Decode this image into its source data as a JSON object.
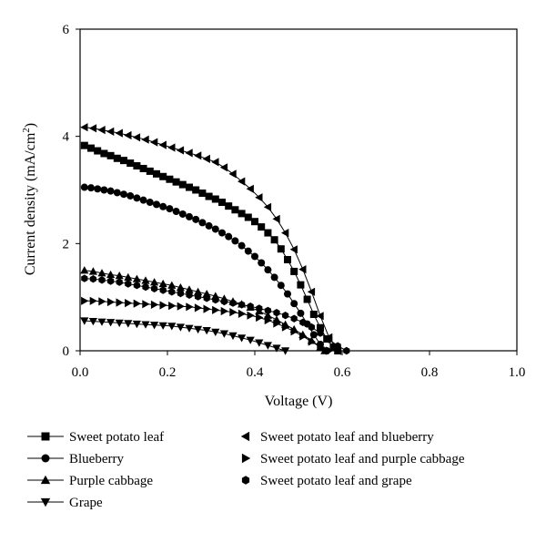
{
  "chart_data": {
    "type": "line",
    "title": "",
    "xlabel": "Voltage (V)",
    "ylabel": "Current density (mA/cm",
    "ylabel_sup": "2",
    "ylabel_close": ")",
    "xlim": [
      0,
      1.0
    ],
    "ylim": [
      0,
      6
    ],
    "xticks": [
      0,
      0.2,
      0.4,
      0.6,
      0.8,
      1.0
    ],
    "xtick_labels": [
      "0.0",
      "0.2",
      "0.4",
      "0.6",
      "0.8",
      "1.0"
    ],
    "yticks": [
      0,
      2,
      4,
      6
    ],
    "ytick_labels": [
      "0",
      "2",
      "4",
      "6"
    ],
    "grid": false,
    "legend_position": "bottom",
    "series": [
      {
        "name": "Sweet potato leaf",
        "marker": "square",
        "x": [
          0.01,
          0.025,
          0.04,
          0.055,
          0.07,
          0.085,
          0.1,
          0.115,
          0.13,
          0.145,
          0.16,
          0.175,
          0.19,
          0.205,
          0.22,
          0.235,
          0.25,
          0.265,
          0.28,
          0.295,
          0.31,
          0.325,
          0.34,
          0.355,
          0.37,
          0.385,
          0.4,
          0.415,
          0.43,
          0.445,
          0.46,
          0.475,
          0.49,
          0.505,
          0.52,
          0.535,
          0.55,
          0.565,
          0.58,
          0.59
        ],
        "y": [
          3.83,
          3.78,
          3.73,
          3.68,
          3.64,
          3.59,
          3.55,
          3.5,
          3.45,
          3.4,
          3.35,
          3.3,
          3.25,
          3.2,
          3.15,
          3.1,
          3.05,
          3.0,
          2.94,
          2.88,
          2.83,
          2.77,
          2.7,
          2.63,
          2.56,
          2.49,
          2.41,
          2.31,
          2.2,
          2.07,
          1.9,
          1.7,
          1.48,
          1.23,
          0.96,
          0.68,
          0.43,
          0.22,
          0.07,
          0.0
        ]
      },
      {
        "name": "Blueberry",
        "marker": "circle",
        "x": [
          0.01,
          0.025,
          0.04,
          0.055,
          0.07,
          0.085,
          0.1,
          0.115,
          0.13,
          0.145,
          0.16,
          0.175,
          0.19,
          0.205,
          0.22,
          0.235,
          0.25,
          0.265,
          0.28,
          0.295,
          0.31,
          0.325,
          0.34,
          0.355,
          0.37,
          0.385,
          0.4,
          0.415,
          0.43,
          0.445,
          0.46,
          0.475,
          0.49,
          0.505,
          0.52,
          0.535,
          0.55,
          0.565
        ],
        "y": [
          3.05,
          3.04,
          3.02,
          3.0,
          2.98,
          2.95,
          2.92,
          2.89,
          2.85,
          2.81,
          2.77,
          2.73,
          2.69,
          2.65,
          2.6,
          2.55,
          2.5,
          2.45,
          2.39,
          2.33,
          2.27,
          2.2,
          2.13,
          2.05,
          1.96,
          1.86,
          1.76,
          1.64,
          1.51,
          1.37,
          1.22,
          1.06,
          0.88,
          0.7,
          0.5,
          0.3,
          0.12,
          0.0
        ]
      },
      {
        "name": "Purple cabbage",
        "marker": "triangle-up",
        "x": [
          0.01,
          0.03,
          0.05,
          0.07,
          0.09,
          0.11,
          0.13,
          0.15,
          0.17,
          0.19,
          0.21,
          0.23,
          0.25,
          0.27,
          0.29,
          0.31,
          0.33,
          0.35,
          0.37,
          0.39,
          0.41,
          0.43,
          0.45,
          0.47,
          0.49,
          0.51,
          0.53,
          0.55,
          0.56
        ],
        "y": [
          1.5,
          1.48,
          1.45,
          1.42,
          1.4,
          1.37,
          1.34,
          1.31,
          1.28,
          1.25,
          1.22,
          1.18,
          1.14,
          1.1,
          1.06,
          1.02,
          0.97,
          0.92,
          0.87,
          0.81,
          0.74,
          0.66,
          0.58,
          0.49,
          0.4,
          0.3,
          0.19,
          0.07,
          0.0
        ]
      },
      {
        "name": "Grape",
        "marker": "triangle-down",
        "x": [
          0.01,
          0.03,
          0.05,
          0.07,
          0.09,
          0.11,
          0.13,
          0.15,
          0.17,
          0.19,
          0.21,
          0.23,
          0.25,
          0.27,
          0.29,
          0.31,
          0.33,
          0.35,
          0.37,
          0.39,
          0.41,
          0.43,
          0.45,
          0.47
        ],
        "y": [
          0.56,
          0.55,
          0.54,
          0.53,
          0.52,
          0.51,
          0.5,
          0.49,
          0.48,
          0.47,
          0.46,
          0.44,
          0.42,
          0.4,
          0.38,
          0.35,
          0.32,
          0.28,
          0.24,
          0.2,
          0.15,
          0.1,
          0.05,
          0.0
        ]
      },
      {
        "name": "Sweet potato leaf and blueberry",
        "marker": "triangle-left",
        "x": [
          0.01,
          0.03,
          0.05,
          0.07,
          0.09,
          0.11,
          0.13,
          0.15,
          0.17,
          0.19,
          0.21,
          0.23,
          0.25,
          0.27,
          0.29,
          0.31,
          0.33,
          0.35,
          0.37,
          0.39,
          0.41,
          0.43,
          0.45,
          0.47,
          0.49,
          0.51,
          0.53,
          0.55,
          0.57,
          0.59
        ],
        "y": [
          4.17,
          4.15,
          4.12,
          4.09,
          4.06,
          4.02,
          3.98,
          3.94,
          3.89,
          3.84,
          3.79,
          3.74,
          3.69,
          3.64,
          3.58,
          3.52,
          3.42,
          3.3,
          3.16,
          3.02,
          2.86,
          2.68,
          2.46,
          2.2,
          1.89,
          1.52,
          1.1,
          0.65,
          0.25,
          0.0
        ]
      },
      {
        "name": "Sweet potato leaf and purple cabbage",
        "marker": "triangle-right",
        "x": [
          0.01,
          0.03,
          0.05,
          0.07,
          0.09,
          0.11,
          0.13,
          0.15,
          0.17,
          0.19,
          0.21,
          0.23,
          0.25,
          0.27,
          0.29,
          0.31,
          0.33,
          0.35,
          0.37,
          0.39,
          0.41,
          0.43,
          0.45,
          0.47,
          0.49,
          0.51,
          0.53,
          0.55,
          0.57
        ],
        "y": [
          0.93,
          0.93,
          0.92,
          0.91,
          0.9,
          0.89,
          0.88,
          0.87,
          0.86,
          0.85,
          0.84,
          0.83,
          0.82,
          0.8,
          0.78,
          0.76,
          0.74,
          0.72,
          0.69,
          0.66,
          0.62,
          0.57,
          0.51,
          0.44,
          0.36,
          0.27,
          0.17,
          0.07,
          0.0
        ]
      },
      {
        "name": "Sweet potato leaf and grape",
        "marker": "hexagon",
        "x": [
          0.01,
          0.03,
          0.05,
          0.07,
          0.09,
          0.11,
          0.13,
          0.15,
          0.17,
          0.19,
          0.21,
          0.23,
          0.25,
          0.27,
          0.29,
          0.31,
          0.33,
          0.35,
          0.37,
          0.39,
          0.41,
          0.43,
          0.45,
          0.47,
          0.49,
          0.51,
          0.53,
          0.55,
          0.57,
          0.59,
          0.61
        ],
        "y": [
          1.35,
          1.34,
          1.32,
          1.3,
          1.28,
          1.25,
          1.22,
          1.19,
          1.16,
          1.13,
          1.1,
          1.07,
          1.04,
          1.01,
          0.98,
          0.95,
          0.92,
          0.89,
          0.86,
          0.83,
          0.79,
          0.75,
          0.71,
          0.66,
          0.6,
          0.53,
          0.44,
          0.33,
          0.21,
          0.09,
          0.0
        ]
      }
    ]
  }
}
